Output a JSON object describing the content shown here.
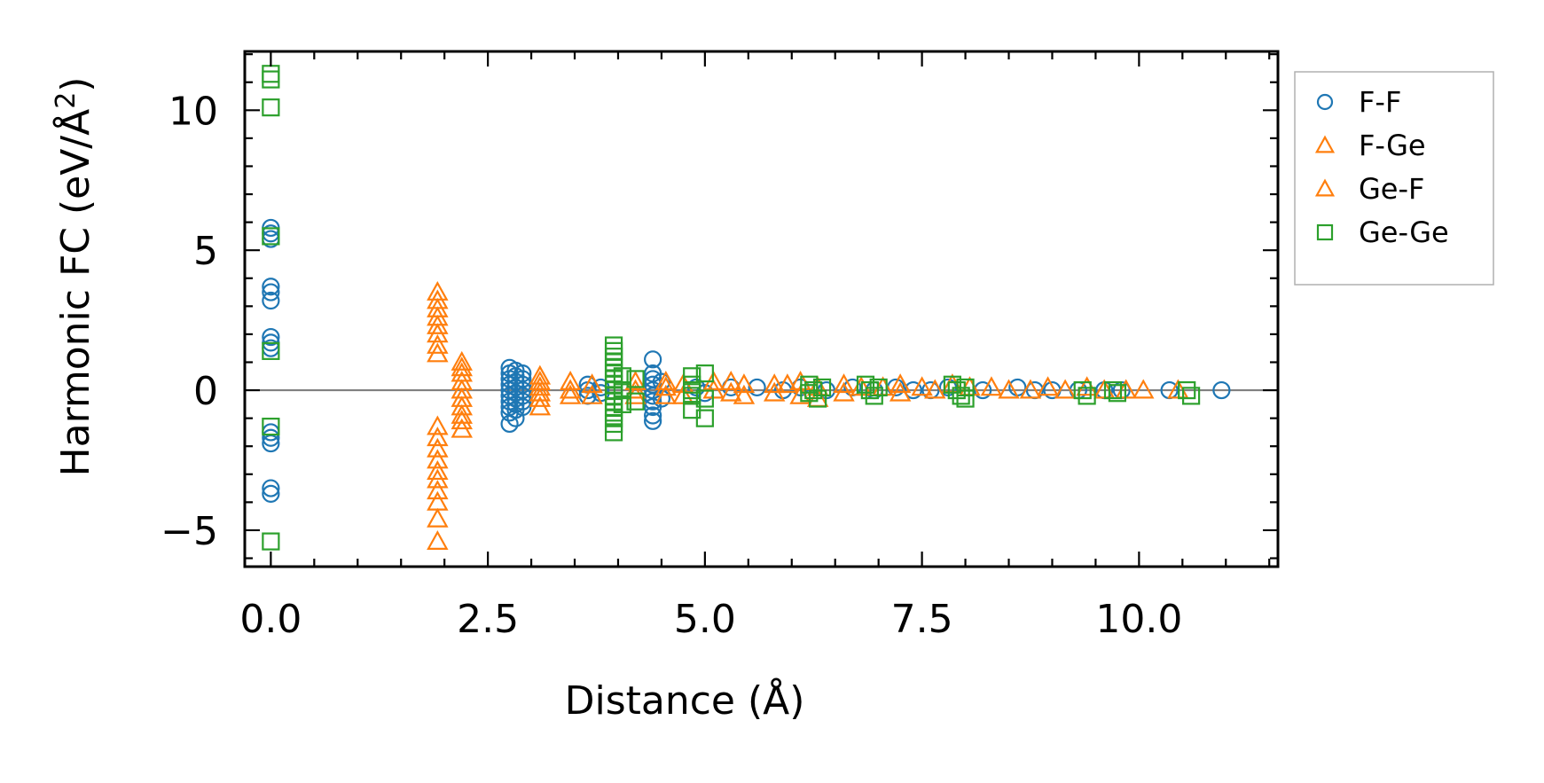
{
  "chart_data": {
    "type": "scatter",
    "xlabel": "Distance (Å)",
    "ylabel": "Harmonic FC (eV/Å",
    "ylabel_superscript": "2",
    "ylabel_close": ")",
    "xlim": [
      -0.3,
      11.6
    ],
    "ylim": [
      -6.3,
      12.1
    ],
    "x_ticks": [
      0.0,
      2.5,
      5.0,
      7.5,
      10.0
    ],
    "x_tick_labels": [
      "0.0",
      "2.5",
      "5.0",
      "7.5",
      "10.0"
    ],
    "y_ticks": [
      -5,
      0,
      5,
      10
    ],
    "y_tick_labels": [
      "−5",
      "0",
      "5",
      "10"
    ],
    "x_minor_step": 0.5,
    "y_minor_step": 1,
    "zero_line": true,
    "legend_position": "outside-top-right",
    "series": [
      {
        "name": "F-F",
        "marker": "circle",
        "color": "#1f77b4",
        "points": [
          [
            0,
            5.8
          ],
          [
            0,
            5.6
          ],
          [
            0,
            5.4
          ],
          [
            0,
            3.7
          ],
          [
            0,
            3.5
          ],
          [
            0,
            3.2
          ],
          [
            0,
            1.9
          ],
          [
            0,
            1.7
          ],
          [
            0,
            1.5
          ],
          [
            0,
            -1.5
          ],
          [
            0,
            -1.7
          ],
          [
            0,
            -1.9
          ],
          [
            0,
            -3.5
          ],
          [
            0,
            -3.7
          ],
          [
            2.75,
            0.8
          ],
          [
            2.75,
            0.6
          ],
          [
            2.75,
            0.4
          ],
          [
            2.75,
            0.2
          ],
          [
            2.75,
            0.0
          ],
          [
            2.75,
            -0.2
          ],
          [
            2.75,
            -0.4
          ],
          [
            2.75,
            -0.6
          ],
          [
            2.75,
            -0.8
          ],
          [
            2.75,
            -1.2
          ],
          [
            2.82,
            0.7
          ],
          [
            2.82,
            0.5
          ],
          [
            2.82,
            0.3
          ],
          [
            2.82,
            0.1
          ],
          [
            2.82,
            -0.1
          ],
          [
            2.82,
            -0.3
          ],
          [
            2.82,
            -0.5
          ],
          [
            2.82,
            -0.7
          ],
          [
            2.82,
            -1.0
          ],
          [
            2.9,
            0.6
          ],
          [
            2.9,
            0.4
          ],
          [
            2.9,
            0.2
          ],
          [
            2.9,
            0.0
          ],
          [
            2.9,
            -0.2
          ],
          [
            2.9,
            -0.4
          ],
          [
            2.9,
            -0.6
          ],
          [
            3.65,
            0.2
          ],
          [
            3.65,
            0.0
          ],
          [
            3.65,
            -0.2
          ],
          [
            3.8,
            0.1
          ],
          [
            3.8,
            -0.1
          ],
          [
            4.4,
            1.1
          ],
          [
            4.4,
            0.6
          ],
          [
            4.4,
            0.4
          ],
          [
            4.4,
            0.2
          ],
          [
            4.4,
            0.0
          ],
          [
            4.4,
            -0.2
          ],
          [
            4.4,
            -0.4
          ],
          [
            4.4,
            -0.6
          ],
          [
            4.4,
            -0.9
          ],
          [
            4.4,
            -1.1
          ],
          [
            4.5,
            0.3
          ],
          [
            4.5,
            -0.3
          ],
          [
            4.9,
            0.1
          ],
          [
            5.0,
            -0.1
          ],
          [
            5.3,
            0.1
          ],
          [
            5.6,
            0.1
          ],
          [
            5.9,
            0.0
          ],
          [
            6.1,
            0.1
          ],
          [
            6.4,
            0.0
          ],
          [
            6.7,
            0.1
          ],
          [
            6.95,
            0.0
          ],
          [
            7.2,
            0.1
          ],
          [
            7.4,
            0.0
          ],
          [
            7.6,
            0.0
          ],
          [
            7.8,
            0.1
          ],
          [
            8.2,
            0.0
          ],
          [
            8.6,
            0.1
          ],
          [
            8.8,
            0.0
          ],
          [
            9.0,
            0.0
          ],
          [
            9.3,
            0.0
          ],
          [
            9.6,
            0.0
          ],
          [
            9.8,
            0.0
          ],
          [
            10.35,
            0.0
          ],
          [
            10.95,
            0.0
          ]
        ]
      },
      {
        "name": "F-Ge",
        "marker": "triangle",
        "color": "#ff7f0e",
        "points": [
          [
            1.92,
            3.5
          ],
          [
            1.92,
            3.2
          ],
          [
            1.92,
            2.9
          ],
          [
            1.92,
            2.6
          ],
          [
            1.92,
            2.3
          ],
          [
            1.92,
            2.0
          ],
          [
            1.92,
            1.6
          ],
          [
            1.92,
            1.3
          ],
          [
            1.92,
            -1.3
          ],
          [
            1.92,
            -1.7
          ],
          [
            1.92,
            -2.1
          ],
          [
            1.92,
            -2.5
          ],
          [
            1.92,
            -2.9
          ],
          [
            1.92,
            -3.2
          ],
          [
            1.92,
            -3.6
          ],
          [
            1.92,
            -4.0
          ],
          [
            1.92,
            -4.6
          ],
          [
            1.92,
            -5.4
          ],
          [
            2.2,
            1.0
          ],
          [
            2.2,
            0.8
          ],
          [
            2.2,
            0.6
          ],
          [
            2.2,
            0.3
          ],
          [
            2.2,
            0.0
          ],
          [
            2.2,
            -0.3
          ],
          [
            2.2,
            -0.6
          ],
          [
            2.2,
            -0.9
          ],
          [
            2.2,
            -1.1
          ],
          [
            2.2,
            -1.4
          ],
          [
            3.1,
            0.5
          ],
          [
            3.1,
            0.3
          ],
          [
            3.1,
            0.1
          ],
          [
            3.1,
            -0.1
          ],
          [
            3.1,
            -0.3
          ],
          [
            3.1,
            -0.6
          ],
          [
            3.45,
            0.3
          ],
          [
            3.45,
            0.0
          ],
          [
            3.45,
            -0.2
          ],
          [
            3.7,
            0.2
          ],
          [
            3.7,
            -0.2
          ]
        ]
      },
      {
        "name": "Ge-F",
        "marker": "triangle",
        "color": "#ff7f0e",
        "points": [
          [
            4.2,
            0.3
          ],
          [
            4.2,
            0.0
          ],
          [
            4.2,
            -0.2
          ],
          [
            4.55,
            0.3
          ],
          [
            4.55,
            0.1
          ],
          [
            4.55,
            -0.2
          ],
          [
            4.75,
            0.2
          ],
          [
            4.75,
            -0.2
          ],
          [
            5.1,
            0.3
          ],
          [
            5.1,
            0.0
          ],
          [
            5.3,
            0.3
          ],
          [
            5.3,
            -0.1
          ],
          [
            5.45,
            0.2
          ],
          [
            5.45,
            -0.2
          ],
          [
            5.8,
            0.2
          ],
          [
            5.8,
            -0.1
          ],
          [
            5.95,
            0.2
          ],
          [
            6.1,
            0.3
          ],
          [
            6.1,
            -0.2
          ],
          [
            6.3,
            0.1
          ],
          [
            6.3,
            -0.3
          ],
          [
            6.6,
            0.2
          ],
          [
            6.6,
            -0.1
          ],
          [
            6.8,
            0.1
          ],
          [
            7.05,
            0.1
          ],
          [
            7.25,
            0.2
          ],
          [
            7.25,
            -0.1
          ],
          [
            7.5,
            0.1
          ],
          [
            7.65,
            0.0
          ],
          [
            7.85,
            0.2
          ],
          [
            8.05,
            0.1
          ],
          [
            8.3,
            0.1
          ],
          [
            8.5,
            0.0
          ],
          [
            8.75,
            0.0
          ],
          [
            8.95,
            0.1
          ],
          [
            9.15,
            0.0
          ],
          [
            9.4,
            0.1
          ],
          [
            9.6,
            0.0
          ],
          [
            9.85,
            0.0
          ],
          [
            10.05,
            0.0
          ],
          [
            10.45,
            0.0
          ]
        ]
      },
      {
        "name": "Ge-Ge",
        "marker": "square",
        "color": "#2ca02c",
        "points": [
          [
            0,
            11.3
          ],
          [
            0,
            11.1
          ],
          [
            0,
            10.1
          ],
          [
            0,
            5.5
          ],
          [
            0,
            1.4
          ],
          [
            0,
            -1.3
          ],
          [
            0,
            -5.4
          ],
          [
            3.95,
            1.6
          ],
          [
            3.95,
            1.4
          ],
          [
            3.95,
            1.2
          ],
          [
            3.95,
            1.0
          ],
          [
            3.95,
            0.8
          ],
          [
            3.95,
            0.6
          ],
          [
            3.95,
            0.4
          ],
          [
            3.95,
            0.2
          ],
          [
            3.95,
            0.0
          ],
          [
            3.95,
            -0.2
          ],
          [
            3.95,
            -0.4
          ],
          [
            3.95,
            -0.6
          ],
          [
            3.95,
            -0.8
          ],
          [
            3.95,
            -1.0
          ],
          [
            3.95,
            -1.2
          ],
          [
            3.95,
            -1.5
          ],
          [
            4.05,
            0.5
          ],
          [
            4.05,
            0.0
          ],
          [
            4.05,
            -0.5
          ],
          [
            4.2,
            0.4
          ],
          [
            4.2,
            -0.4
          ],
          [
            4.85,
            0.5
          ],
          [
            4.85,
            0.2
          ],
          [
            4.85,
            0.0
          ],
          [
            4.85,
            -0.2
          ],
          [
            4.85,
            -0.7
          ],
          [
            5.0,
            0.6
          ],
          [
            5.0,
            -0.3
          ],
          [
            5.0,
            -1.0
          ],
          [
            6.2,
            0.2
          ],
          [
            6.2,
            -0.1
          ],
          [
            6.25,
            0.0
          ],
          [
            6.3,
            -0.3
          ],
          [
            6.35,
            0.1
          ],
          [
            6.85,
            0.2
          ],
          [
            6.9,
            0.0
          ],
          [
            6.95,
            -0.2
          ],
          [
            7.0,
            0.1
          ],
          [
            7.85,
            0.2
          ],
          [
            7.9,
            0.0
          ],
          [
            7.95,
            -0.2
          ],
          [
            8.0,
            -0.3
          ],
          [
            8.0,
            0.1
          ],
          [
            9.35,
            0.0
          ],
          [
            9.4,
            -0.2
          ],
          [
            9.7,
            0.0
          ],
          [
            9.75,
            -0.1
          ],
          [
            10.55,
            0.0
          ],
          [
            10.6,
            -0.2
          ]
        ]
      }
    ]
  }
}
